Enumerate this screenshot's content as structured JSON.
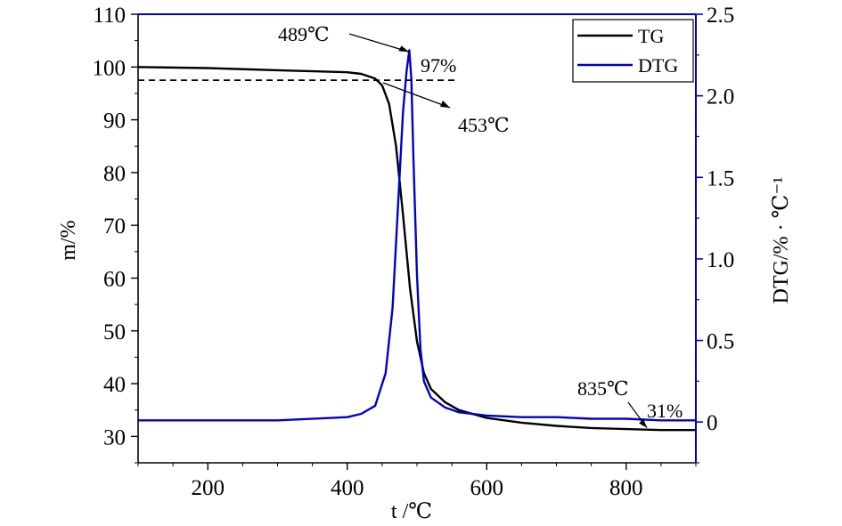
{
  "chart_data": {
    "type": "line",
    "xlabel": "t /℃",
    "ylabel": "m/%",
    "y2label": "DTG/% · ℃⁻¹",
    "xlim": [
      100,
      900
    ],
    "ylim": [
      25,
      110
    ],
    "y2lim": [
      -0.25,
      2.5
    ],
    "xticks": [
      200,
      400,
      600,
      800
    ],
    "yticks": [
      30,
      40,
      50,
      60,
      70,
      80,
      90,
      100,
      110
    ],
    "y2ticks": [
      0,
      0.5,
      1.0,
      1.5,
      2.0,
      2.5
    ],
    "xtick_labels": [
      "200",
      "400",
      "600",
      "800"
    ],
    "ytick_labels": [
      "30",
      "40",
      "50",
      "60",
      "70",
      "80",
      "90",
      "100",
      "110"
    ],
    "y2tick_labels": [
      "0",
      "0.5",
      "1.0",
      "1.5",
      "2.0",
      "2.5"
    ],
    "legend_position": "top-right",
    "grid": false,
    "series": [
      {
        "name": "TG",
        "axis": "left",
        "color": "#000000",
        "x": [
          100,
          200,
          300,
          400,
          420,
          440,
          450,
          460,
          470,
          480,
          490,
          500,
          510,
          520,
          540,
          560,
          600,
          650,
          700,
          750,
          800,
          850,
          900
        ],
        "y": [
          100,
          99.8,
          99.4,
          99.0,
          98.7,
          97.8,
          96.5,
          93,
          85,
          72,
          58,
          48,
          42,
          39,
          36.5,
          35,
          33.5,
          32.6,
          32,
          31.6,
          31.4,
          31.2,
          31.2
        ]
      },
      {
        "name": "DTG",
        "axis": "right",
        "color": "#0000cc",
        "x": [
          100,
          200,
          300,
          400,
          420,
          440,
          455,
          465,
          470,
          475,
          480,
          485,
          489,
          492,
          495,
          500,
          505,
          510,
          520,
          540,
          560,
          600,
          650,
          700,
          750,
          800,
          850,
          900
        ],
        "y": [
          0.01,
          0.01,
          0.01,
          0.03,
          0.05,
          0.1,
          0.3,
          0.7,
          1.1,
          1.5,
          1.9,
          2.15,
          2.28,
          2.1,
          1.6,
          0.9,
          0.45,
          0.25,
          0.15,
          0.09,
          0.06,
          0.04,
          0.03,
          0.03,
          0.02,
          0.02,
          0.01,
          0.01
        ]
      }
    ],
    "reference_line": {
      "y": 97.5,
      "x_range": [
        100,
        560
      ],
      "style": "dashed"
    },
    "annotations": [
      {
        "text": "489℃",
        "x": 489,
        "y": 2.28,
        "axis": "right"
      },
      {
        "text": "97%",
        "x": 456,
        "y": 97.5,
        "axis": "left"
      },
      {
        "text": "453℃",
        "x": 453,
        "y": 97,
        "axis": "left"
      },
      {
        "text": "835℃",
        "x": 835,
        "y": 31.3,
        "axis": "left"
      },
      {
        "text": "31%",
        "x": 850,
        "y": 31.2,
        "axis": "left"
      }
    ]
  }
}
